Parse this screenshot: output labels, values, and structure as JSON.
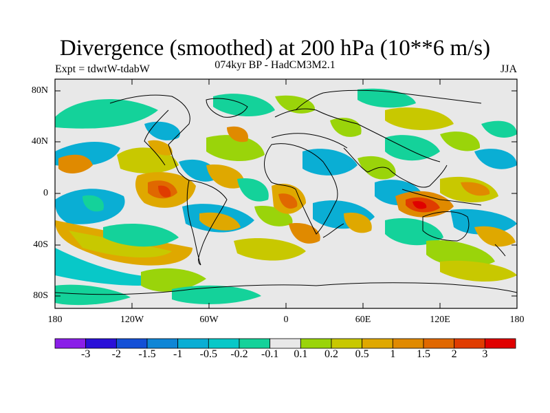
{
  "title": "Divergence (smoothed) at 200 hPa (10**6 m/s)",
  "subtitle": "074kyr BP - HadCM3M2.1",
  "left_label": "Expt = tdwtW-tdabW",
  "right_label": "JJA",
  "lat_ticks": [
    "80N",
    "40N",
    "0",
    "40S",
    "80S"
  ],
  "lon_ticks": [
    "180",
    "120W",
    "60W",
    "0",
    "60E",
    "120E",
    "180"
  ],
  "colorbar": {
    "colors": [
      "#8a1ee8",
      "#2a10d8",
      "#1450d6",
      "#0f86d6",
      "#0aaed4",
      "#08c8c8",
      "#14d29a",
      "#e8e8e8",
      "#9ad40a",
      "#c8c800",
      "#dfa800",
      "#e08a00",
      "#e06800",
      "#e03c00",
      "#e00000"
    ],
    "labels": [
      "-3",
      "-2",
      "-1.5",
      "-1",
      "-0.5",
      "-0.2",
      "-0.1",
      "0.1",
      "0.2",
      "0.5",
      "1",
      "1.5",
      "2",
      "3"
    ]
  }
}
